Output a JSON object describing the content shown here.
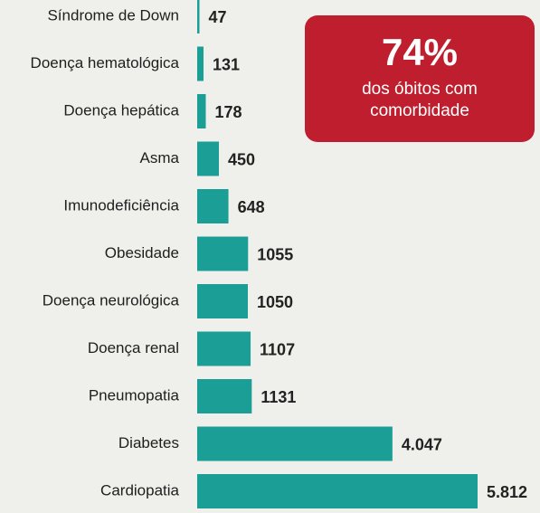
{
  "chart_data": {
    "type": "hbar",
    "categories": [
      "Síndrome de Down",
      "Doença hematológica",
      "Doença hepática",
      "Asma",
      "Imunodeficiência",
      "Obesidade",
      "Doença neurológica",
      "Doença renal",
      "Pneumopatia",
      "Diabetes",
      "Cardiopatia"
    ],
    "values": [
      47,
      131,
      178,
      450,
      648,
      1055,
      1050,
      1107,
      1131,
      4047,
      5812
    ],
    "value_labels": [
      "47",
      "131",
      "178",
      "450",
      "648",
      "1055",
      "1050",
      "1107",
      "1131",
      "4.047",
      "5.812"
    ],
    "color": "#1a9e95",
    "annotation": {
      "value": 74,
      "label": "74%",
      "text": "dos óbitos com comorbidade"
    }
  }
}
